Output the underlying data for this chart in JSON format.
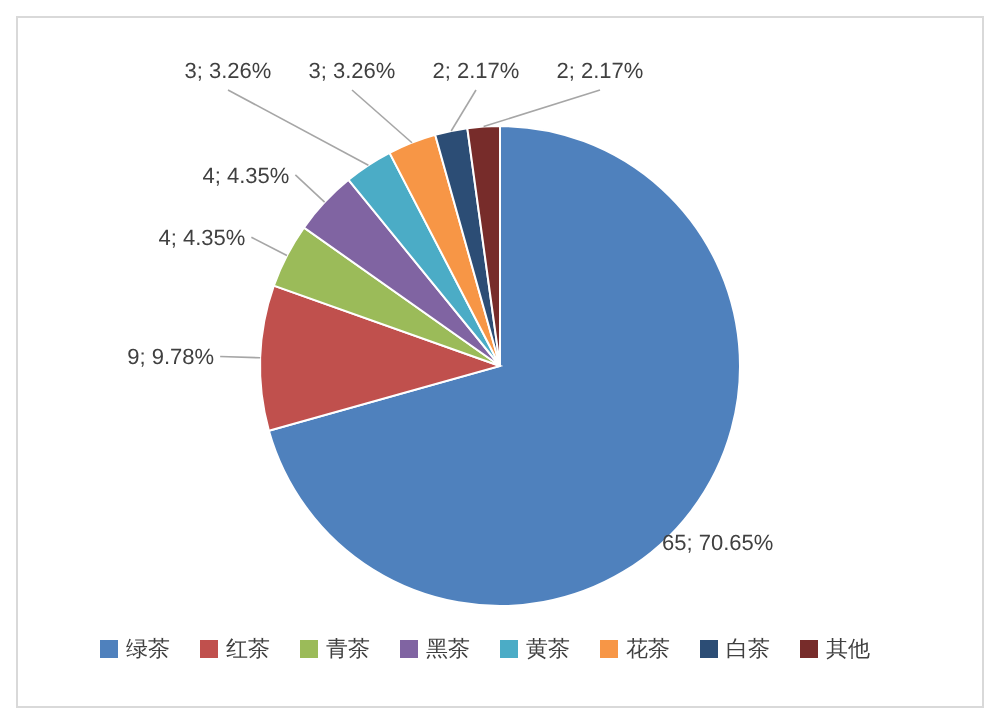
{
  "chart_data": {
    "type": "pie",
    "categories": [
      "绿茶",
      "红茶",
      "青茶",
      "黑茶",
      "黄茶",
      "花茶",
      "白茶",
      "其他"
    ],
    "values": [
      65,
      9,
      4,
      4,
      3,
      3,
      2,
      2
    ],
    "value_labels": [
      "65; 70.65%",
      "9; 9.78%",
      "4; 4.35%",
      "4; 4.35%",
      "3; 3.26%",
      "3; 3.26%",
      "2; 2.17%",
      "2; 2.17%"
    ],
    "colors": [
      "#4f81bd",
      "#c0504d",
      "#9bbb59",
      "#8064a2",
      "#4bacc6",
      "#f79646",
      "#2c4d75",
      "#772c2a"
    ],
    "legend": "bottom"
  }
}
